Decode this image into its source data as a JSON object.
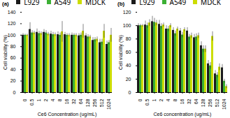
{
  "chart_data": [
    {
      "type": "bar",
      "title": "(a)",
      "xlabel": "Ce6 Concentration (ug/mL)",
      "ylabel": "Cell viability (%)",
      "categories": [
        "0",
        "0.5",
        "1",
        "2",
        "4",
        "8",
        "16",
        "32",
        "64",
        "128",
        "256",
        "512",
        "1024"
      ],
      "series": [
        {
          "name": "L929",
          "color": "#1a1a1a",
          "values": [
            100,
            110,
            105,
            105,
            102,
            101,
            101,
            100,
            99,
            99,
            91,
            87,
            84
          ],
          "errors": [
            3,
            12,
            6,
            5,
            5,
            5,
            4,
            4,
            4,
            4,
            5,
            6,
            6
          ]
        },
        {
          "name": "A549",
          "color": "#3cb034",
          "values": [
            100,
            104,
            103,
            104,
            101,
            100,
            100,
            100,
            100,
            97,
            92,
            88,
            87
          ],
          "errors": [
            2,
            4,
            4,
            4,
            4,
            4,
            3,
            3,
            4,
            4,
            4,
            5,
            4
          ]
        },
        {
          "name": "MDCK",
          "color": "#ccdd00",
          "values": [
            100,
            104,
            103,
            102,
            101,
            106,
            100,
            100,
            107,
            97,
            93,
            107,
            100
          ],
          "errors": [
            2,
            3,
            3,
            3,
            3,
            18,
            3,
            3,
            12,
            3,
            4,
            12,
            12
          ]
        }
      ],
      "ylim": [
        0,
        140
      ],
      "yticks": [
        0,
        20,
        40,
        60,
        80,
        100,
        120,
        140
      ],
      "grid": false,
      "legend": "upper right"
    },
    {
      "type": "bar",
      "title": "(b)",
      "xlabel": "Ce6 concentration (ug/mL)",
      "ylabel": "Cell viability (%)",
      "categories": [
        "0",
        "0.5",
        "1",
        "2",
        "4",
        "8",
        "16",
        "32",
        "64",
        "128",
        "256",
        "512",
        "1024"
      ],
      "series": [
        {
          "name": "L929",
          "color": "#1a1a1a",
          "values": [
            100,
            101,
            106,
            102,
            95,
            93,
            92,
            92,
            82,
            70,
            43,
            28,
            37
          ],
          "errors": [
            3,
            6,
            8,
            6,
            5,
            4,
            4,
            5,
            5,
            6,
            5,
            5,
            5
          ]
        },
        {
          "name": "A549",
          "color": "#3cb034",
          "values": [
            100,
            100,
            105,
            99,
            95,
            88,
            86,
            83,
            83,
            65,
            40,
            26,
            17
          ],
          "errors": [
            2,
            4,
            6,
            4,
            4,
            4,
            4,
            4,
            5,
            5,
            5,
            4,
            3
          ]
        },
        {
          "name": "MDCK",
          "color": "#ccdd00",
          "values": [
            100,
            104,
            104,
            101,
            100,
            95,
            94,
            85,
            85,
            65,
            84,
            38,
            9
          ],
          "errors": [
            2,
            5,
            4,
            3,
            3,
            3,
            3,
            4,
            4,
            5,
            7,
            5,
            3
          ]
        }
      ],
      "ylim": [
        0,
        120
      ],
      "yticks": [
        0,
        20,
        40,
        60,
        80,
        100,
        120
      ],
      "grid": false,
      "legend": "upper right"
    }
  ]
}
